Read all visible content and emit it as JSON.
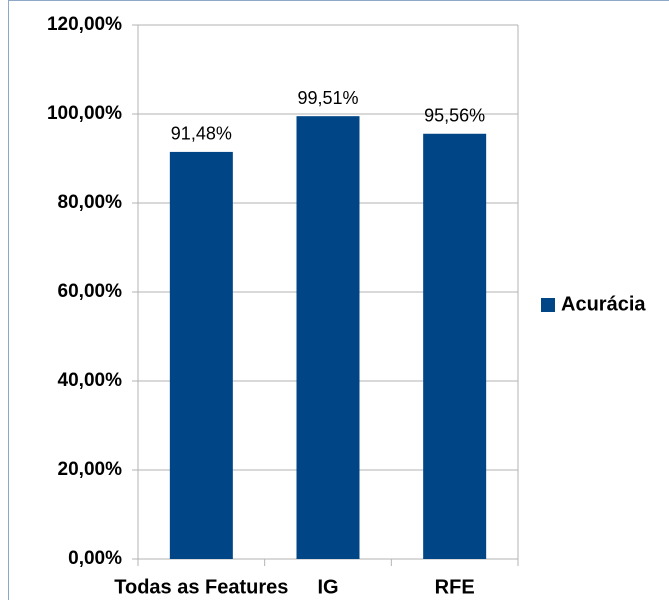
{
  "chart_data": {
    "type": "bar",
    "categories": [
      "Todas as Features",
      "IG",
      "RFE"
    ],
    "series": [
      {
        "name": "Acurácia",
        "color": "#004586",
        "values": [
          91.48,
          99.51,
          95.56
        ],
        "value_labels": [
          "91,48%",
          "99,51%",
          "95,56%"
        ]
      }
    ],
    "ylim": [
      0,
      120
    ],
    "yticks": [
      {
        "value": 0,
        "label": "0,00%"
      },
      {
        "value": 20,
        "label": "20,00%"
      },
      {
        "value": 40,
        "label": "40,00%"
      },
      {
        "value": 60,
        "label": "60,00%"
      },
      {
        "value": 80,
        "label": "80,00%"
      },
      {
        "value": 100,
        "label": "100,00%"
      },
      {
        "value": 120,
        "label": "120,00%"
      }
    ],
    "grid": true,
    "legend": "right"
  }
}
